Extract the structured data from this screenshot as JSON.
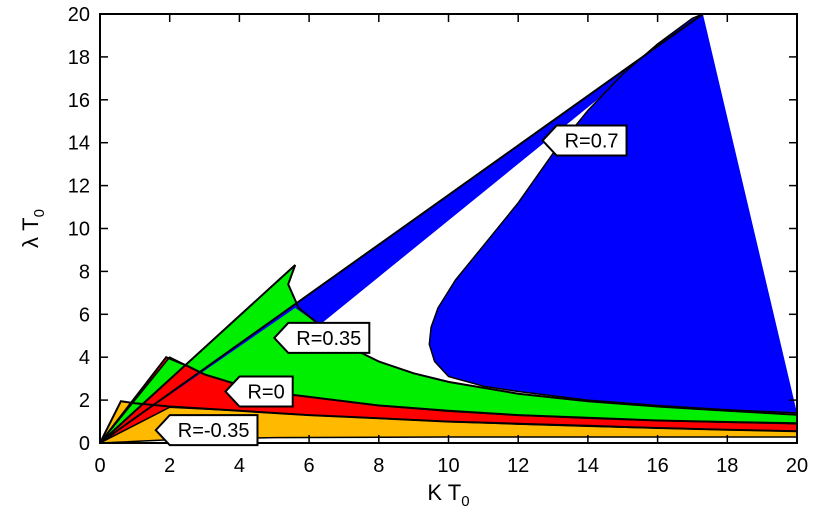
{
  "chart_data": {
    "type": "area",
    "xlabel": {
      "main": "K T",
      "sub": "0"
    },
    "ylabel": {
      "main": "λ T",
      "sub": "0"
    },
    "xlim": [
      0,
      20
    ],
    "ylim": [
      0,
      20
    ],
    "xticks": [
      0,
      2,
      4,
      6,
      8,
      10,
      12,
      14,
      16,
      18,
      20
    ],
    "yticks": [
      0,
      2,
      4,
      6,
      8,
      10,
      12,
      14,
      16,
      18,
      20
    ],
    "grid": false,
    "colors": {
      "R_m035": "#ffba00",
      "R_0": "#ff0000",
      "R_035": "#00ee00",
      "R_07": "#0000ff"
    },
    "series": [
      {
        "name": "R=-0.35",
        "key": "R_m035",
        "upper": [
          [
            0,
            0
          ],
          [
            0.6,
            1.95
          ],
          [
            1.0,
            1.85
          ],
          [
            2.0,
            1.7
          ],
          [
            4,
            1.5
          ],
          [
            6,
            1.3
          ],
          [
            8,
            1.15
          ],
          [
            10,
            1.0
          ],
          [
            12,
            0.9
          ],
          [
            14,
            0.8
          ],
          [
            16,
            0.7
          ],
          [
            18,
            0.62
          ],
          [
            20,
            0.55
          ]
        ],
        "lower": [
          [
            0,
            0
          ],
          [
            2,
            0.15
          ],
          [
            5,
            0.25
          ],
          [
            10,
            0.28
          ],
          [
            15,
            0.28
          ],
          [
            20,
            0.28
          ]
        ]
      },
      {
        "name": "R=0",
        "key": "R_0",
        "upper": [
          [
            0,
            0
          ],
          [
            1.9,
            4.0
          ],
          [
            2.5,
            3.6
          ],
          [
            3.0,
            3.2
          ],
          [
            4,
            2.7
          ],
          [
            5,
            2.35
          ],
          [
            6,
            2.15
          ],
          [
            8,
            1.75
          ],
          [
            10,
            1.5
          ],
          [
            12,
            1.3
          ],
          [
            14,
            1.18
          ],
          [
            16,
            1.05
          ],
          [
            18,
            0.98
          ],
          [
            20,
            0.92
          ]
        ],
        "lower": [
          [
            0,
            0
          ],
          [
            2.0,
            1.67
          ],
          [
            4,
            1.5
          ],
          [
            6,
            1.3
          ],
          [
            8,
            1.15
          ],
          [
            10,
            1.0
          ],
          [
            12,
            0.88
          ],
          [
            14,
            0.78
          ],
          [
            16,
            0.7
          ],
          [
            18,
            0.62
          ],
          [
            20,
            0.55
          ]
        ]
      },
      {
        "name": "R=0.35",
        "key": "R_035",
        "upper": [
          [
            0,
            0
          ],
          [
            5.6,
            8.3
          ],
          [
            5.4,
            7.4
          ],
          [
            5.7,
            6.3
          ],
          [
            6.3,
            5.5
          ],
          [
            7.0,
            4.6
          ],
          [
            8.0,
            3.8
          ],
          [
            9.0,
            3.25
          ],
          [
            10,
            2.85
          ],
          [
            12,
            2.3
          ],
          [
            14,
            1.95
          ],
          [
            16,
            1.7
          ],
          [
            18,
            1.5
          ],
          [
            20,
            1.32
          ]
        ],
        "lower": [
          [
            0,
            0
          ],
          [
            2.0,
            4.0
          ],
          [
            3.0,
            3.2
          ],
          [
            4,
            2.7
          ],
          [
            5,
            2.35
          ],
          [
            6,
            2.15
          ],
          [
            8,
            1.75
          ],
          [
            10,
            1.48
          ],
          [
            12,
            1.3
          ],
          [
            14,
            1.15
          ],
          [
            16,
            1.05
          ],
          [
            18,
            0.97
          ],
          [
            20,
            0.9
          ]
        ]
      },
      {
        "name": "R=0.7",
        "key": "R_07",
        "upper": [
          [
            0,
            0
          ],
          [
            17.3,
            20
          ]
        ],
        "lower": [
          [
            20,
            1.4
          ],
          [
            18,
            1.55
          ],
          [
            16,
            1.75
          ],
          [
            14,
            2.0
          ],
          [
            12,
            2.4
          ],
          [
            11,
            2.65
          ],
          [
            10,
            3.1
          ],
          [
            9.6,
            3.8
          ],
          [
            9.45,
            4.6
          ],
          [
            9.5,
            5.4
          ],
          [
            9.7,
            6.3
          ],
          [
            10.2,
            7.6
          ],
          [
            11,
            9.2
          ],
          [
            12,
            11.2
          ],
          [
            13,
            13.5
          ],
          [
            14,
            15.5
          ],
          [
            15,
            17.2
          ],
          [
            16,
            18.6
          ],
          [
            17,
            19.8
          ],
          [
            17.3,
            20
          ]
        ],
        "closure": [
          [
            20,
            1.4
          ],
          [
            6.3,
            5.5
          ],
          [
            5.6,
            6.3
          ],
          [
            0,
            0
          ]
        ]
      }
    ],
    "annotations": [
      {
        "text": "R=0.7",
        "pointer": [
          12.7,
          14.1
        ]
      },
      {
        "text": "R=0.35",
        "pointer": [
          5.0,
          4.9
        ]
      },
      {
        "text": "R=0",
        "pointer": [
          3.6,
          2.4
        ]
      },
      {
        "text": "R=-0.35",
        "pointer": [
          1.6,
          0.6
        ]
      }
    ]
  }
}
